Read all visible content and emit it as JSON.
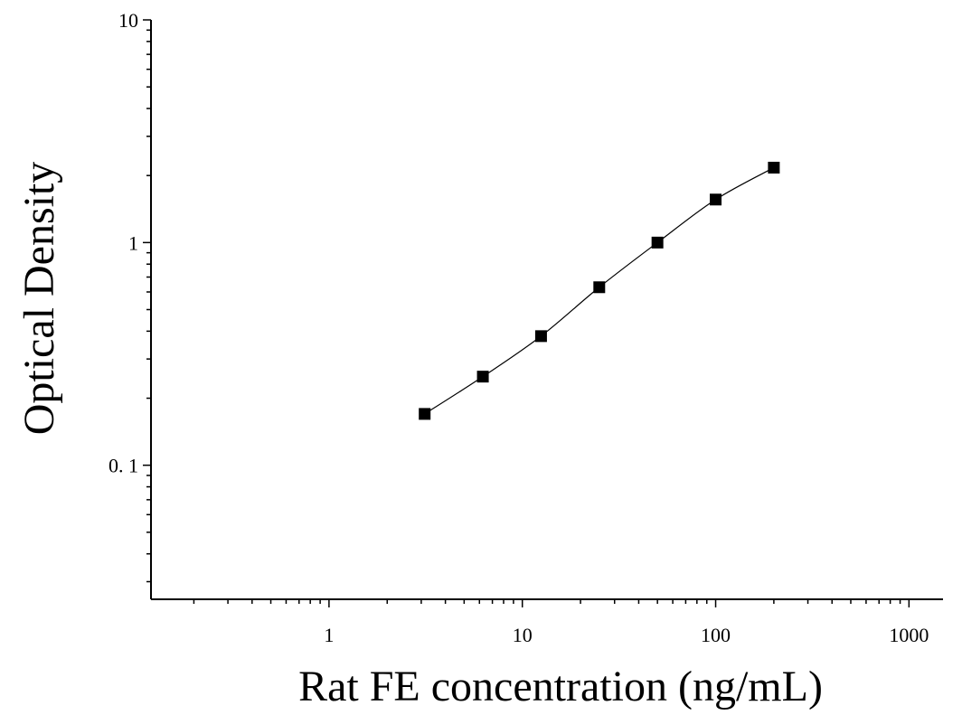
{
  "chart_data": {
    "type": "scatter",
    "xlabel": "Rat FE concentration (ng/mL)",
    "ylabel": "Optical Density",
    "x_scale": "log",
    "y_scale": "log",
    "xlim": [
      0.12,
      1500
    ],
    "ylim": [
      0.025,
      10
    ],
    "x_ticks": [
      {
        "value": 1,
        "label": "1"
      },
      {
        "value": 10,
        "label": "10"
      },
      {
        "value": 100,
        "label": "100"
      },
      {
        "value": 1000,
        "label": "1000"
      }
    ],
    "y_ticks": [
      {
        "value": 0.1,
        "label": "0. 1"
      },
      {
        "value": 1,
        "label": "1"
      },
      {
        "value": 10,
        "label": "10"
      }
    ],
    "grid": false,
    "fit_curve": true,
    "marker": "square",
    "color": "#000000",
    "series": [
      {
        "x": [
          3.125,
          6.25,
          12.5,
          25,
          50,
          100,
          200
        ],
        "y": [
          0.17,
          0.25,
          0.38,
          0.63,
          1.0,
          1.56,
          2.17
        ]
      }
    ]
  }
}
